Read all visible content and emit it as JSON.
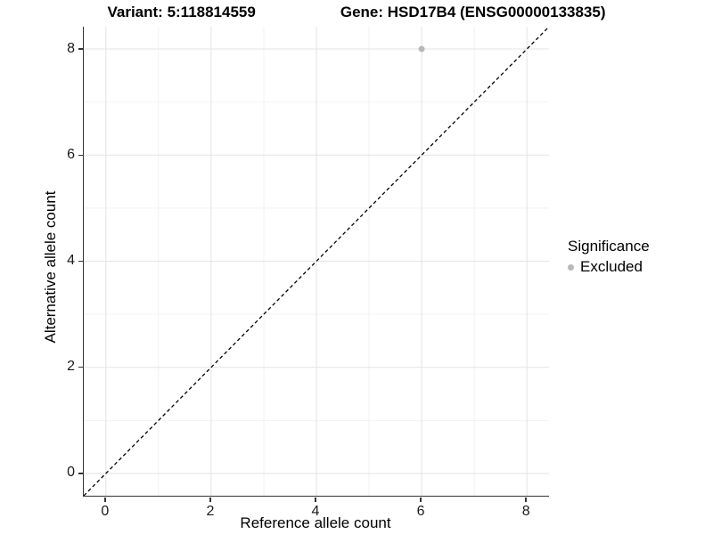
{
  "header": {
    "variant_title": "Variant: 5:118814559",
    "gene_title": "Gene: HSD17B4 (ENSG00000133835)"
  },
  "axes": {
    "x": {
      "label": "Reference allele count"
    },
    "y": {
      "label": "Alternative allele count"
    }
  },
  "legend": {
    "title": "Significance",
    "items": [
      {
        "label": "Excluded",
        "color": "#b8b8b8"
      }
    ]
  },
  "chart_data": {
    "type": "scatter",
    "title": "Variant: 5:118814559    Gene: HSD17B4 (ENSG00000133835)",
    "xlabel": "Reference allele count",
    "ylabel": "Alternative allele count",
    "xlim": [
      -0.42,
      8.42
    ],
    "ylim": [
      -0.42,
      8.42
    ],
    "x_ticks": [
      0,
      2,
      4,
      6,
      8
    ],
    "y_ticks": [
      0,
      2,
      4,
      6,
      8
    ],
    "grid": "major+minor",
    "legend_position": "right",
    "legend_title": "Significance",
    "series": [
      {
        "name": "Excluded",
        "color": "#b8b8b8",
        "point_radius": 3.5,
        "points": [
          [
            6,
            8
          ]
        ]
      }
    ],
    "annotations": [
      {
        "type": "abline",
        "slope": 1,
        "intercept": 0,
        "style": "dashed",
        "color": "#000000"
      }
    ]
  },
  "colors": {
    "background": "#ffffff",
    "grid_major": "#e3e3e3",
    "grid_minor": "#f2f2f2",
    "axis_line": "#333333",
    "tick_text": "#1a1a1a",
    "dashed_line": "#000000",
    "point": "#b8b8b8"
  }
}
